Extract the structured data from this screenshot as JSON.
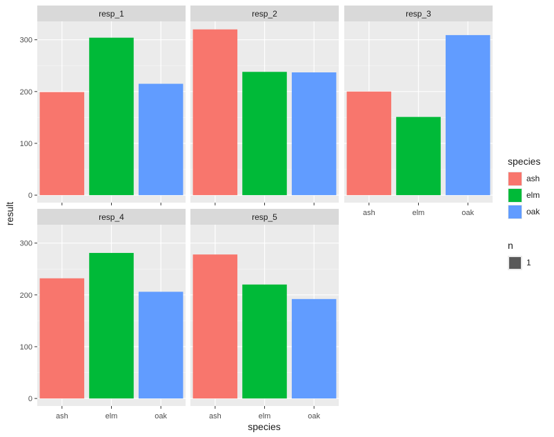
{
  "chart_data": {
    "type": "bar",
    "facet_layout": "wrap 3 columns",
    "xlabel": "species",
    "ylabel": "result",
    "ylim": [
      0,
      320
    ],
    "yticks": [
      0,
      100,
      200,
      300
    ],
    "categories": [
      "ash",
      "elm",
      "oak"
    ],
    "grid": true,
    "panels": [
      {
        "strip": "resp_1",
        "values": [
          199,
          304,
          215
        ]
      },
      {
        "strip": "resp_2",
        "values": [
          320,
          238,
          237
        ]
      },
      {
        "strip": "resp_3",
        "values": [
          200,
          151,
          309
        ]
      },
      {
        "strip": "resp_4",
        "values": [
          232,
          281,
          206
        ]
      },
      {
        "strip": "resp_5",
        "values": [
          278,
          220,
          192
        ]
      }
    ],
    "legend": {
      "placement": "right",
      "fill_title": "species",
      "fill_items": [
        {
          "label": "ash",
          "color": "#F8766D"
        },
        {
          "label": "elm",
          "color": "#00BA38"
        },
        {
          "label": "oak",
          "color": "#619CFF"
        }
      ],
      "size_title": "n",
      "size_items": [
        {
          "label": "1"
        }
      ]
    }
  }
}
